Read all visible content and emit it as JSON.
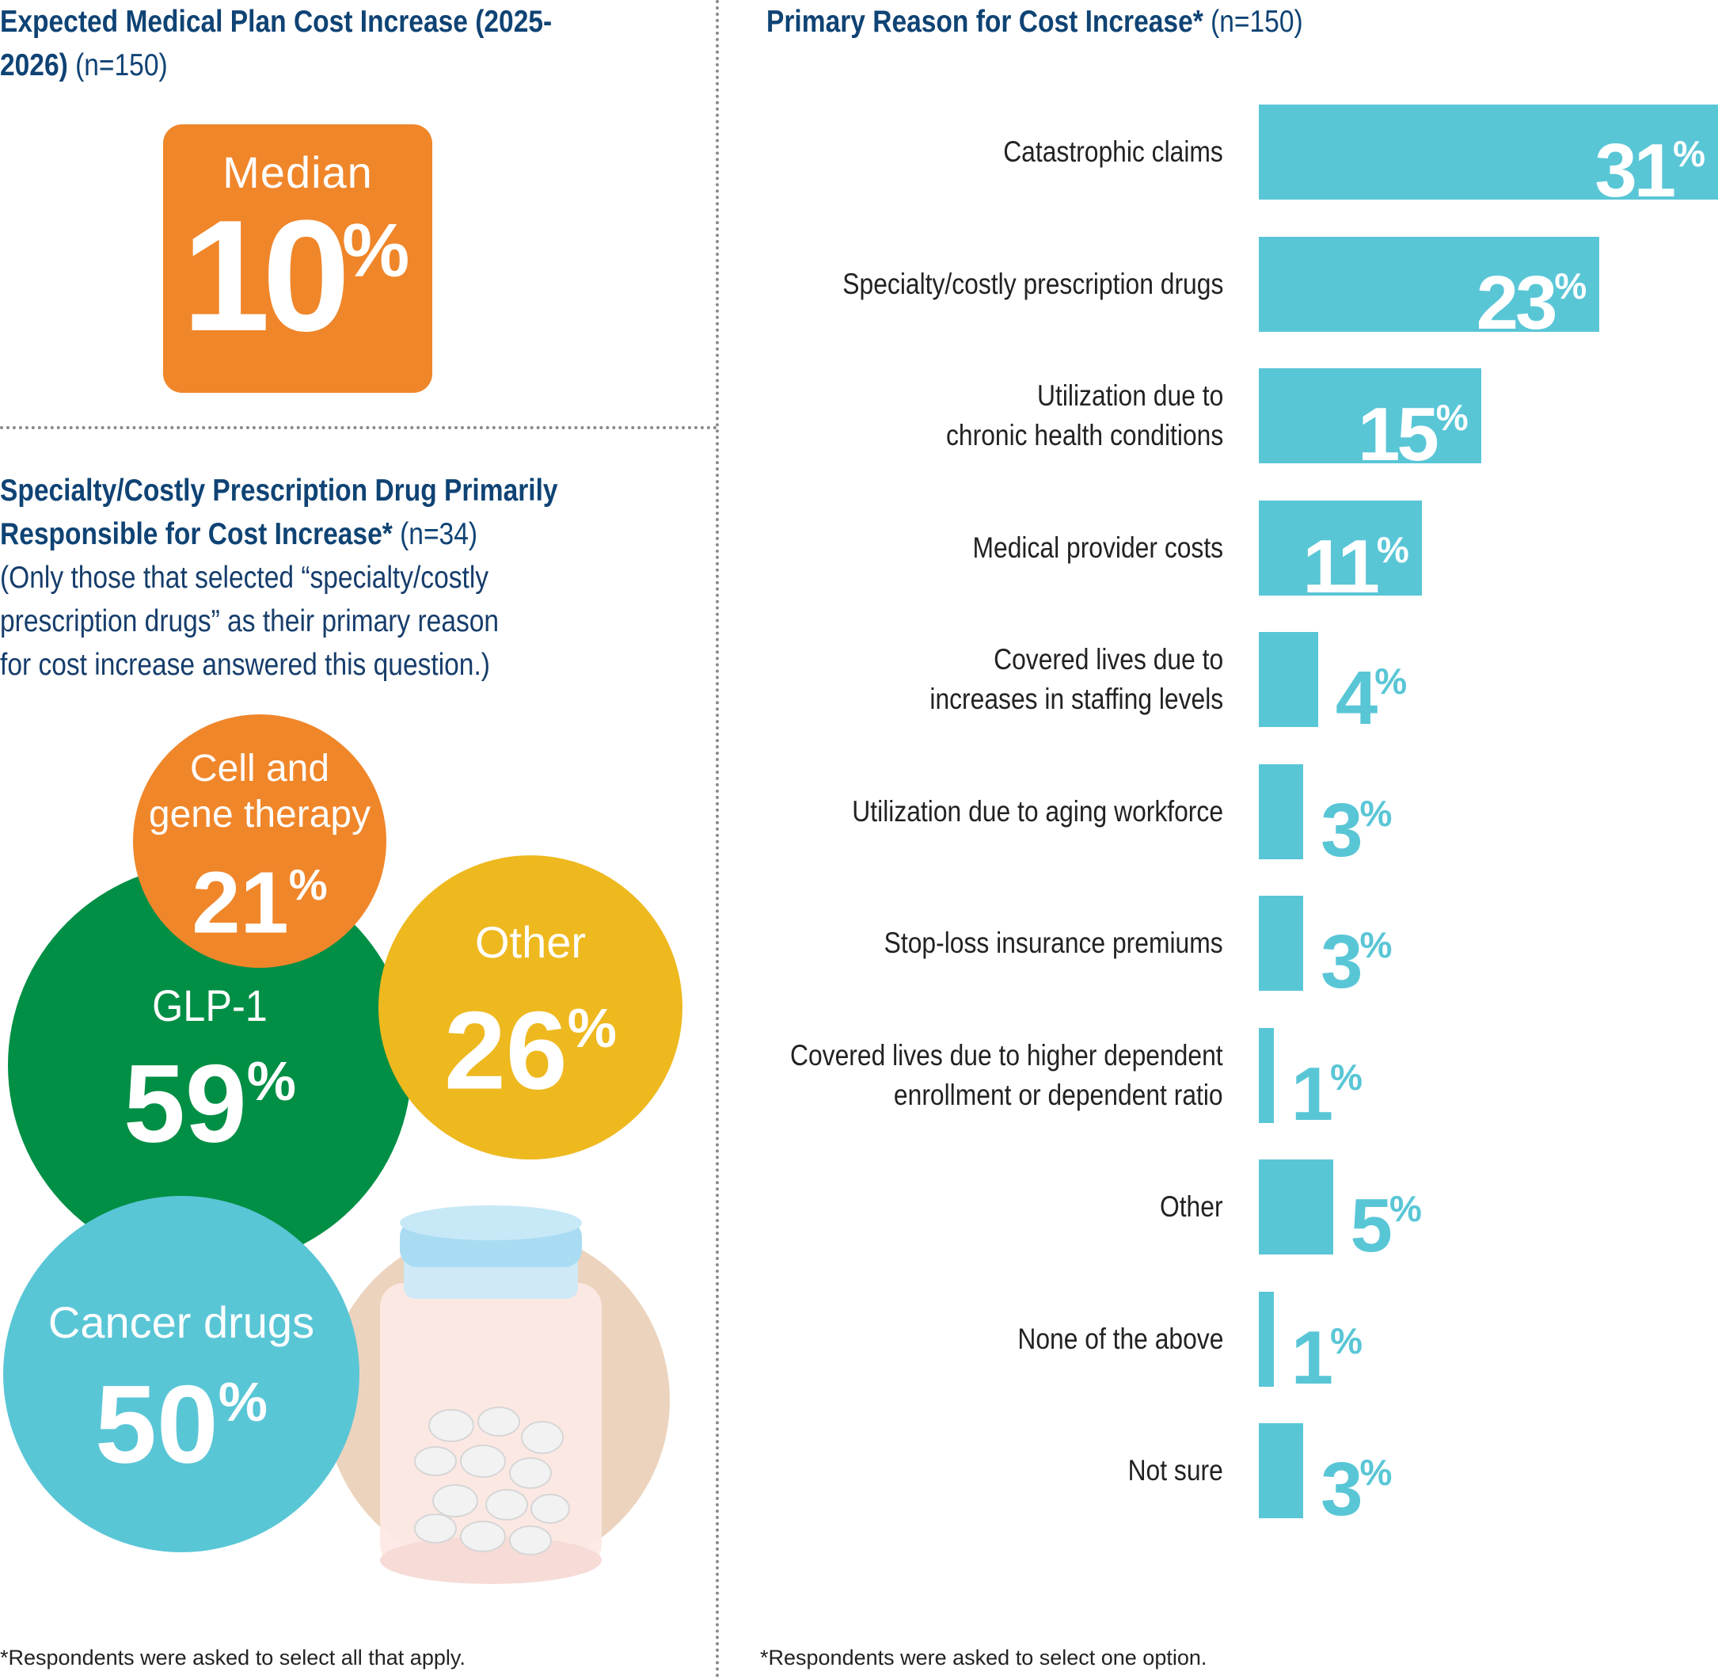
{
  "median_section": {
    "title": "Expected Medical Plan Cost Increase (2025-2026)",
    "sample": "(n=150)",
    "label": "Median",
    "value": "10",
    "unit": "%"
  },
  "drug_section": {
    "title": "Specialty/Costly Prescription Drug Primarily Responsible for Cost Increase*",
    "sample": "(n=34)",
    "note": "(Only those that selected “specialty/costly prescription drugs” as their primary reason for cost increase answered this question.)",
    "footnote": "*Respondents were asked to select all that apply.",
    "bubbles": {
      "cell": {
        "label_1": "Cell and",
        "label_2": "gene therapy",
        "value": "21",
        "unit": "%"
      },
      "glp": {
        "label": "GLP-1",
        "value": "59",
        "unit": "%"
      },
      "other": {
        "label": "Other",
        "value": "26",
        "unit": "%"
      },
      "cancer": {
        "label": "Cancer drugs",
        "value": "50",
        "unit": "%"
      }
    }
  },
  "reason_section": {
    "title": "Primary Reason for Cost Increase*",
    "sample": "(n=150)",
    "footnote": "*Respondents were asked to select one option."
  },
  "colors": {
    "title_blue": "#0f4374",
    "median_orange": "#f0862a",
    "bar_teal": "#59c6d6",
    "glp_green": "#008f45",
    "other_yellow": "#eeb81f",
    "cancer_teal": "#59c6d6"
  },
  "chart_data": [
    {
      "type": "bar",
      "orientation": "horizontal",
      "title": "Primary Reason for Cost Increase*",
      "categories": [
        "Catastrophic claims",
        "Specialty/costly prescription drugs",
        "Utilization due to chronic health conditions",
        "Medical provider costs",
        "Covered lives due to increases in staffing levels",
        "Utilization due to aging workforce",
        "Stop-loss insurance premiums",
        "Covered lives due to higher dependent enrollment or dependent ratio",
        "Other",
        "None of the above",
        "Not sure"
      ],
      "label_lines": [
        [
          "Catastrophic claims"
        ],
        [
          "Specialty/costly prescription drugs"
        ],
        [
          "Utilization due to",
          "chronic health conditions"
        ],
        [
          "Medical provider costs"
        ],
        [
          "Covered lives due to",
          "increases in staffing levels"
        ],
        [
          "Utilization due to aging workforce"
        ],
        [
          "Stop-loss insurance premiums"
        ],
        [
          "Covered lives due to higher dependent",
          "enrollment or dependent ratio"
        ],
        [
          "Other"
        ],
        [
          "None of the above"
        ],
        [
          "Not sure"
        ]
      ],
      "values": [
        31,
        23,
        15,
        11,
        4,
        3,
        3,
        1,
        5,
        1,
        3
      ],
      "unit": "%",
      "xlim": [
        0,
        31
      ]
    },
    {
      "type": "bubble",
      "title": "Specialty/Costly Prescription Drug Primarily Responsible for Cost Increase*",
      "categories": [
        "Cell and gene therapy",
        "GLP-1",
        "Other",
        "Cancer drugs"
      ],
      "values": [
        21,
        59,
        26,
        50
      ],
      "unit": "%"
    }
  ]
}
